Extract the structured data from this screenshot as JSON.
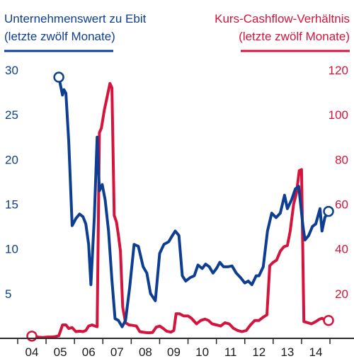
{
  "chart_data": {
    "type": "line",
    "x_tick_labels": [
      "04",
      "05",
      "06",
      "07",
      "08",
      "09",
      "10",
      "11",
      "12",
      "13",
      "14"
    ],
    "x_range": [
      2003.5,
      2014.7
    ],
    "grid": false,
    "series": [
      {
        "axis": "left",
        "color": "#0d3e91",
        "title_lines": [
          "Unternehmenswert zu Ebit",
          "(letzte zwölf Monate)"
        ],
        "ylim": [
          0,
          31.5
        ],
        "ticks": [
          5,
          10,
          15,
          20,
          25,
          30
        ],
        "points": [
          [
            2004.95,
            29.2
          ],
          [
            2005.08,
            27.2
          ],
          [
            2005.13,
            27.8
          ],
          [
            2005.2,
            27.4
          ],
          [
            2005.3,
            22.0
          ],
          [
            2005.42,
            12.6
          ],
          [
            2005.55,
            13.4
          ],
          [
            2005.68,
            13.9
          ],
          [
            2005.8,
            13.6
          ],
          [
            2005.9,
            12.8
          ],
          [
            2006.0,
            10.5
          ],
          [
            2006.08,
            6.0
          ],
          [
            2006.2,
            13.5
          ],
          [
            2006.3,
            22.5
          ],
          [
            2006.38,
            16.5
          ],
          [
            2006.48,
            17.2
          ],
          [
            2006.58,
            15.5
          ],
          [
            2006.7,
            12.0
          ],
          [
            2006.82,
            6.5
          ],
          [
            2006.93,
            2.2
          ],
          [
            2007.05,
            2.0
          ],
          [
            2007.18,
            1.3
          ],
          [
            2007.3,
            2.0
          ],
          [
            2007.45,
            5.8
          ],
          [
            2007.6,
            10.5
          ],
          [
            2007.75,
            10.3
          ],
          [
            2007.92,
            8.0
          ],
          [
            2008.05,
            7.3
          ],
          [
            2008.18,
            5.0
          ],
          [
            2008.35,
            4.2
          ],
          [
            2008.5,
            9.5
          ],
          [
            2008.65,
            10.5
          ],
          [
            2008.82,
            10.8
          ],
          [
            2008.95,
            11.5
          ],
          [
            2009.05,
            12.0
          ],
          [
            2009.18,
            11.5
          ],
          [
            2009.3,
            7.0
          ],
          [
            2009.42,
            6.4
          ],
          [
            2009.58,
            6.8
          ],
          [
            2009.72,
            7.0
          ],
          [
            2009.85,
            8.2
          ],
          [
            2010.0,
            7.8
          ],
          [
            2010.12,
            8.3
          ],
          [
            2010.25,
            8.0
          ],
          [
            2010.38,
            7.3
          ],
          [
            2010.5,
            7.8
          ],
          [
            2010.62,
            8.5
          ],
          [
            2010.75,
            8.0
          ],
          [
            2010.9,
            8.0
          ],
          [
            2011.05,
            8.1
          ],
          [
            2011.2,
            7.3
          ],
          [
            2011.35,
            6.8
          ],
          [
            2011.5,
            6.2
          ],
          [
            2011.62,
            6.4
          ],
          [
            2011.75,
            6.0
          ],
          [
            2011.9,
            7.0
          ],
          [
            2012.0,
            7.0
          ],
          [
            2012.15,
            8.0
          ],
          [
            2012.3,
            12.0
          ],
          [
            2012.45,
            14.0
          ],
          [
            2012.6,
            13.5
          ],
          [
            2012.75,
            14.0
          ],
          [
            2012.9,
            16.0
          ],
          [
            2013.0,
            14.5
          ],
          [
            2013.15,
            15.5
          ],
          [
            2013.28,
            16.7
          ],
          [
            2013.4,
            17.0
          ],
          [
            2013.55,
            12.5
          ],
          [
            2013.62,
            11.0
          ],
          [
            2013.75,
            11.5
          ],
          [
            2013.88,
            12.5
          ],
          [
            2014.0,
            12.8
          ],
          [
            2014.15,
            14.5
          ],
          [
            2014.22,
            12.0
          ],
          [
            2014.32,
            13.5
          ],
          [
            2014.45,
            14.2
          ]
        ],
        "start_marker": [
          2004.95,
          29.2
        ],
        "end_marker": [
          2014.45,
          14.2
        ]
      },
      {
        "axis": "right",
        "color": "#d4143c",
        "title_lines": [
          "Kurs-Cashflow-Verhältnis",
          "(letzte zwölf Monate)"
        ],
        "ylim": [
          0,
          126
        ],
        "ticks": [
          20,
          40,
          60,
          80,
          100,
          120
        ],
        "points": [
          [
            2004.0,
            1.0
          ],
          [
            2004.1,
            0.8
          ],
          [
            2004.25,
            0.5
          ],
          [
            2004.4,
            0.4
          ],
          [
            2004.55,
            0.6
          ],
          [
            2004.7,
            0.6
          ],
          [
            2004.83,
            0.8
          ],
          [
            2004.95,
            1.2
          ],
          [
            2005.08,
            6.0
          ],
          [
            2005.2,
            6.0
          ],
          [
            2005.3,
            4.4
          ],
          [
            2005.42,
            4.8
          ],
          [
            2005.55,
            3.0
          ],
          [
            2005.68,
            3.2
          ],
          [
            2005.8,
            3.0
          ],
          [
            2005.9,
            3.5
          ],
          [
            2006.0,
            5.5
          ],
          [
            2006.12,
            6.0
          ],
          [
            2006.22,
            5.5
          ],
          [
            2006.3,
            5.2
          ],
          [
            2006.38,
            92.0
          ],
          [
            2006.45,
            94.0
          ],
          [
            2006.55,
            102.0
          ],
          [
            2006.65,
            108.0
          ],
          [
            2006.75,
            114.0
          ],
          [
            2006.82,
            112.0
          ],
          [
            2006.9,
            55.0
          ],
          [
            2006.98,
            52.0
          ],
          [
            2007.05,
            46.0
          ],
          [
            2007.12,
            39.0
          ],
          [
            2007.2,
            14.0
          ],
          [
            2007.3,
            7.0
          ],
          [
            2007.42,
            6.0
          ],
          [
            2007.55,
            5.8
          ],
          [
            2007.68,
            5.5
          ],
          [
            2007.8,
            3.0
          ],
          [
            2007.95,
            2.7
          ],
          [
            2008.1,
            2.5
          ],
          [
            2008.25,
            2.6
          ],
          [
            2008.38,
            5.0
          ],
          [
            2008.5,
            5.5
          ],
          [
            2008.62,
            4.5
          ],
          [
            2008.75,
            3.2
          ],
          [
            2008.9,
            2.8
          ],
          [
            2009.0,
            3.5
          ],
          [
            2009.08,
            11.0
          ],
          [
            2009.2,
            11.0
          ],
          [
            2009.35,
            10.0
          ],
          [
            2009.5,
            10.0
          ],
          [
            2009.62,
            9.0
          ],
          [
            2009.8,
            6.5
          ],
          [
            2009.95,
            8.0
          ],
          [
            2010.1,
            8.6
          ],
          [
            2010.22,
            8.0
          ],
          [
            2010.35,
            6.5
          ],
          [
            2010.5,
            6.0
          ],
          [
            2010.65,
            5.5
          ],
          [
            2010.8,
            7.0
          ],
          [
            2010.95,
            6.5
          ],
          [
            2011.1,
            4.5
          ],
          [
            2011.25,
            3.5
          ],
          [
            2011.4,
            3.0
          ],
          [
            2011.55,
            3.5
          ],
          [
            2011.7,
            6.0
          ],
          [
            2011.85,
            8.0
          ],
          [
            2012.0,
            8.0
          ],
          [
            2012.15,
            9.5
          ],
          [
            2012.28,
            10.5
          ],
          [
            2012.38,
            32.5
          ],
          [
            2012.5,
            34.0
          ],
          [
            2012.62,
            35.0
          ],
          [
            2012.75,
            39.0
          ],
          [
            2012.88,
            41.0
          ],
          [
            2013.0,
            41.5
          ],
          [
            2013.1,
            48.0
          ],
          [
            2013.22,
            60.0
          ],
          [
            2013.32,
            65.0
          ],
          [
            2013.42,
            75.0
          ],
          [
            2013.5,
            75.5
          ],
          [
            2013.58,
            7.5
          ],
          [
            2013.72,
            7.0
          ],
          [
            2013.85,
            6.5
          ],
          [
            2014.0,
            7.5
          ],
          [
            2014.12,
            8.5
          ],
          [
            2014.22,
            9.0
          ],
          [
            2014.35,
            8.0
          ],
          [
            2014.45,
            8.0
          ]
        ],
        "start_marker": [
          2004.0,
          1.0
        ],
        "end_marker": [
          2014.45,
          8.0
        ]
      }
    ]
  }
}
